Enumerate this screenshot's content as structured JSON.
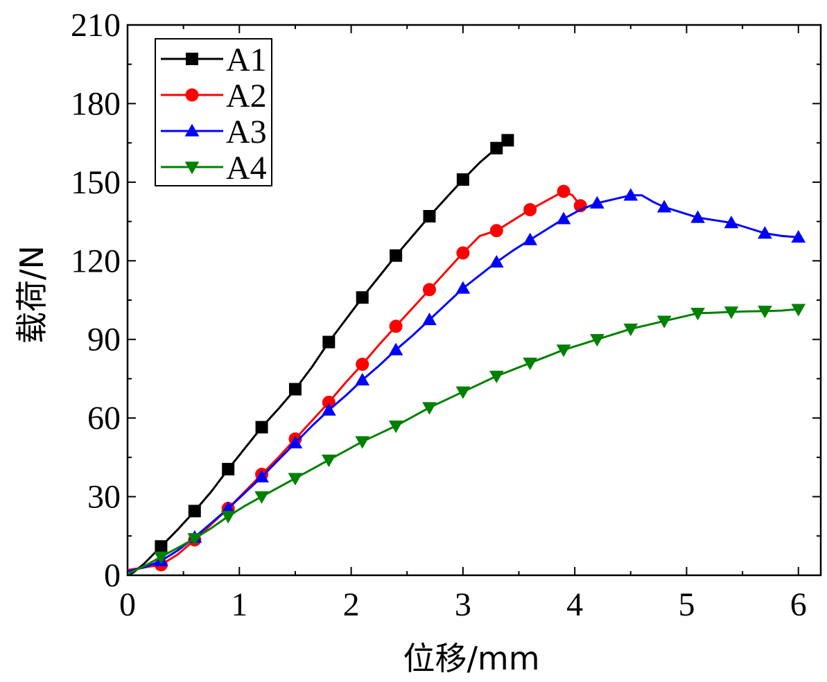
{
  "chart_data": {
    "type": "line",
    "title": "",
    "xlabel": "位移/mm",
    "ylabel": "载荷/N",
    "xlim": [
      0,
      6.2
    ],
    "ylim": [
      0,
      210
    ],
    "xticks": [
      0,
      1,
      2,
      3,
      4,
      5,
      6
    ],
    "yticks": [
      0,
      30,
      60,
      90,
      120,
      150,
      180,
      210
    ],
    "legend_position": "top-left",
    "grid": false,
    "series": [
      {
        "name": "A1",
        "color": "#000000",
        "marker": "square",
        "line": [
          [
            0.0,
            0.0
          ],
          [
            0.05,
            1.0
          ],
          [
            0.15,
            4.5
          ],
          [
            0.3,
            11.0
          ],
          [
            0.45,
            17.5
          ],
          [
            0.6,
            24.5
          ],
          [
            0.75,
            32.0
          ],
          [
            0.9,
            40.5
          ],
          [
            1.05,
            48.5
          ],
          [
            1.2,
            56.5
          ],
          [
            1.35,
            63.5
          ],
          [
            1.5,
            71.0
          ],
          [
            1.65,
            79.5
          ],
          [
            1.8,
            89.0
          ],
          [
            1.95,
            97.5
          ],
          [
            2.1,
            106.0
          ],
          [
            2.25,
            114.0
          ],
          [
            2.4,
            122.0
          ],
          [
            2.55,
            129.5
          ],
          [
            2.7,
            137.0
          ],
          [
            2.85,
            144.0
          ],
          [
            3.0,
            151.0
          ],
          [
            3.15,
            157.5
          ],
          [
            3.3,
            163.0
          ],
          [
            3.4,
            166.0
          ]
        ],
        "markers": [
          [
            0.3,
            11.0
          ],
          [
            0.6,
            24.5
          ],
          [
            0.9,
            40.5
          ],
          [
            1.2,
            56.5
          ],
          [
            1.5,
            71.0
          ],
          [
            1.8,
            89.0
          ],
          [
            2.1,
            106.0
          ],
          [
            2.4,
            122.0
          ],
          [
            2.7,
            137.0
          ],
          [
            3.0,
            151.0
          ],
          [
            3.3,
            163.0
          ],
          [
            3.4,
            166.0
          ]
        ]
      },
      {
        "name": "A2",
        "color": "#ff0000",
        "marker": "circle",
        "line": [
          [
            0.0,
            2.0
          ],
          [
            0.15,
            3.0
          ],
          [
            0.3,
            4.0
          ],
          [
            0.45,
            8.0
          ],
          [
            0.6,
            13.5
          ],
          [
            0.75,
            19.5
          ],
          [
            0.9,
            25.5
          ],
          [
            1.05,
            32.0
          ],
          [
            1.2,
            38.5
          ],
          [
            1.35,
            45.0
          ],
          [
            1.5,
            52.0
          ],
          [
            1.65,
            59.0
          ],
          [
            1.8,
            66.0
          ],
          [
            1.95,
            73.5
          ],
          [
            2.1,
            80.5
          ],
          [
            2.25,
            88.0
          ],
          [
            2.4,
            95.0
          ],
          [
            2.55,
            102.0
          ],
          [
            2.7,
            109.0
          ],
          [
            2.85,
            116.0
          ],
          [
            3.0,
            123.0
          ],
          [
            3.15,
            129.5
          ],
          [
            3.3,
            131.5
          ],
          [
            3.45,
            135.5
          ],
          [
            3.6,
            139.5
          ],
          [
            3.75,
            143.0
          ],
          [
            3.9,
            146.5
          ],
          [
            3.98,
            145.0
          ],
          [
            4.05,
            141.0
          ]
        ],
        "markers": [
          [
            0.3,
            4.0
          ],
          [
            0.6,
            13.5
          ],
          [
            0.9,
            25.5
          ],
          [
            1.2,
            38.5
          ],
          [
            1.5,
            52.0
          ],
          [
            1.8,
            66.0
          ],
          [
            2.1,
            80.5
          ],
          [
            2.4,
            95.0
          ],
          [
            2.7,
            109.0
          ],
          [
            3.0,
            123.0
          ],
          [
            3.3,
            131.5
          ],
          [
            3.6,
            139.5
          ],
          [
            3.9,
            146.5
          ],
          [
            4.05,
            141.0
          ]
        ]
      },
      {
        "name": "A3",
        "color": "#0000ff",
        "marker": "triangle-up",
        "line": [
          [
            0.0,
            1.5
          ],
          [
            0.15,
            3.0
          ],
          [
            0.3,
            5.5
          ],
          [
            0.45,
            9.5
          ],
          [
            0.6,
            14.5
          ],
          [
            0.75,
            20.0
          ],
          [
            0.9,
            25.5
          ],
          [
            1.05,
            31.5
          ],
          [
            1.2,
            37.5
          ],
          [
            1.35,
            44.0
          ],
          [
            1.5,
            50.5
          ],
          [
            1.65,
            57.0
          ],
          [
            1.8,
            63.0
          ],
          [
            1.95,
            68.5
          ],
          [
            2.1,
            74.5
          ],
          [
            2.25,
            80.0
          ],
          [
            2.4,
            86.0
          ],
          [
            2.55,
            91.5
          ],
          [
            2.7,
            97.5
          ],
          [
            2.85,
            103.5
          ],
          [
            3.0,
            109.5
          ],
          [
            3.15,
            114.5
          ],
          [
            3.3,
            119.5
          ],
          [
            3.45,
            124.0
          ],
          [
            3.6,
            128.0
          ],
          [
            3.75,
            132.0
          ],
          [
            3.9,
            136.0
          ],
          [
            4.05,
            139.5
          ],
          [
            4.2,
            142.0
          ],
          [
            4.35,
            143.5
          ],
          [
            4.5,
            145.0
          ],
          [
            4.6,
            145.0
          ],
          [
            4.7,
            142.5
          ],
          [
            4.8,
            140.5
          ],
          [
            4.95,
            138.5
          ],
          [
            5.1,
            136.5
          ],
          [
            5.25,
            135.5
          ],
          [
            5.4,
            134.5
          ],
          [
            5.55,
            132.5
          ],
          [
            5.7,
            130.5
          ],
          [
            5.85,
            129.5
          ],
          [
            6.0,
            129.0
          ]
        ],
        "markers": [
          [
            0.3,
            5.5
          ],
          [
            0.6,
            14.5
          ],
          [
            0.9,
            25.5
          ],
          [
            1.2,
            37.5
          ],
          [
            1.5,
            50.5
          ],
          [
            1.8,
            63.0
          ],
          [
            2.1,
            74.5
          ],
          [
            2.4,
            86.0
          ],
          [
            2.7,
            97.5
          ],
          [
            3.0,
            109.5
          ],
          [
            3.3,
            119.5
          ],
          [
            3.6,
            128.0
          ],
          [
            3.9,
            136.0
          ],
          [
            4.2,
            142.0
          ],
          [
            4.5,
            145.0
          ],
          [
            4.8,
            140.5
          ],
          [
            5.1,
            136.5
          ],
          [
            5.4,
            134.5
          ],
          [
            5.7,
            130.5
          ],
          [
            6.0,
            129.0
          ]
        ]
      },
      {
        "name": "A4",
        "color": "#008000",
        "marker": "triangle-down",
        "line": [
          [
            0.0,
            0.5
          ],
          [
            0.15,
            3.5
          ],
          [
            0.3,
            7.0
          ],
          [
            0.45,
            10.5
          ],
          [
            0.6,
            14.0
          ],
          [
            0.75,
            18.0
          ],
          [
            0.9,
            22.5
          ],
          [
            1.05,
            26.5
          ],
          [
            1.2,
            30.0
          ],
          [
            1.35,
            33.5
          ],
          [
            1.5,
            37.0
          ],
          [
            1.65,
            40.5
          ],
          [
            1.8,
            44.0
          ],
          [
            1.95,
            47.5
          ],
          [
            2.1,
            51.0
          ],
          [
            2.25,
            54.0
          ],
          [
            2.4,
            57.0
          ],
          [
            2.55,
            60.5
          ],
          [
            2.7,
            64.0
          ],
          [
            2.85,
            67.0
          ],
          [
            3.0,
            70.0
          ],
          [
            3.15,
            73.0
          ],
          [
            3.3,
            76.0
          ],
          [
            3.45,
            78.5
          ],
          [
            3.6,
            81.0
          ],
          [
            3.75,
            83.5
          ],
          [
            3.9,
            86.0
          ],
          [
            4.05,
            88.0
          ],
          [
            4.2,
            90.0
          ],
          [
            4.35,
            92.0
          ],
          [
            4.5,
            94.0
          ],
          [
            4.65,
            95.5
          ],
          [
            4.8,
            97.0
          ],
          [
            4.95,
            98.5
          ],
          [
            5.1,
            100.0
          ],
          [
            5.25,
            100.2
          ],
          [
            5.4,
            100.5
          ],
          [
            5.55,
            100.7
          ],
          [
            5.7,
            100.8
          ],
          [
            5.85,
            101.0
          ],
          [
            6.0,
            101.5
          ]
        ],
        "markers": [
          [
            0.3,
            7.0
          ],
          [
            0.6,
            14.0
          ],
          [
            0.9,
            22.5
          ],
          [
            1.2,
            30.0
          ],
          [
            1.5,
            37.0
          ],
          [
            1.8,
            44.0
          ],
          [
            2.1,
            51.0
          ],
          [
            2.4,
            57.0
          ],
          [
            2.7,
            64.0
          ],
          [
            3.0,
            70.0
          ],
          [
            3.3,
            76.0
          ],
          [
            3.6,
            81.0
          ],
          [
            3.9,
            86.0
          ],
          [
            4.2,
            90.0
          ],
          [
            4.5,
            94.0
          ],
          [
            4.8,
            97.0
          ],
          [
            5.1,
            100.0
          ],
          [
            5.4,
            100.5
          ],
          [
            5.7,
            100.8
          ],
          [
            6.0,
            101.5
          ]
        ]
      }
    ]
  }
}
